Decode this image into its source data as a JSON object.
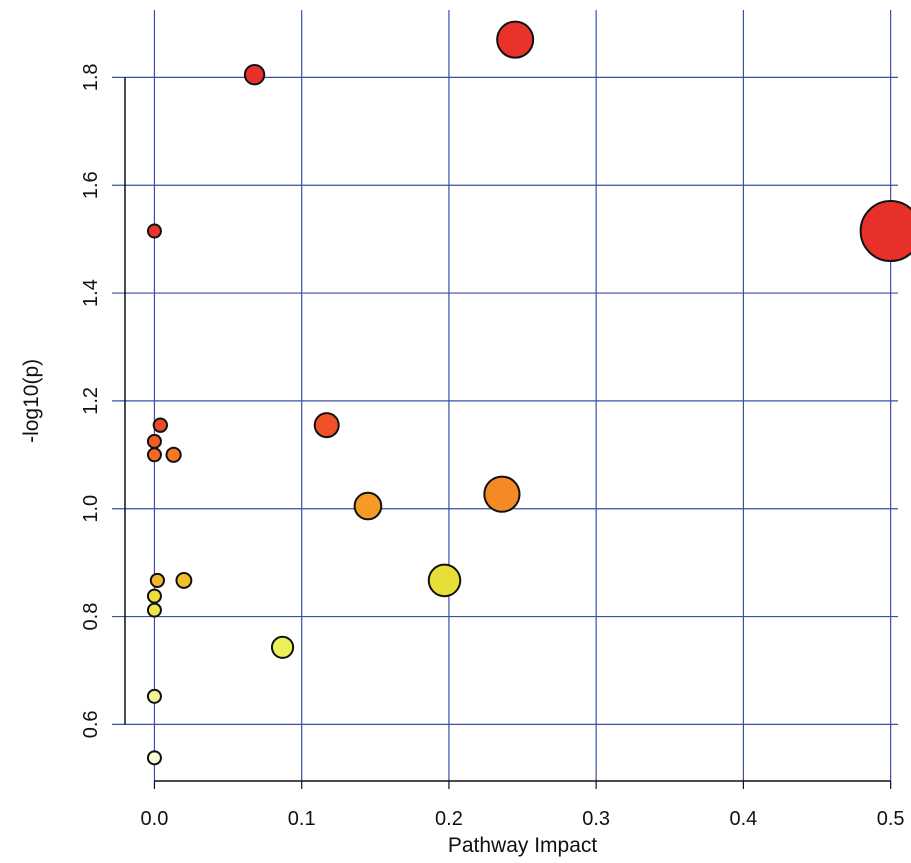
{
  "chart_data": {
    "type": "scatter",
    "title": "",
    "xlabel": "Pathway Impact",
    "ylabel": "-log10(p)",
    "xlim": [
      -0.02,
      0.505
    ],
    "ylim": [
      0.495,
      1.925
    ],
    "x_ticks": [
      0.0,
      0.1,
      0.2,
      0.3,
      0.4,
      0.5
    ],
    "x_tick_labels": [
      "0.0",
      "0.1",
      "0.2",
      "0.3",
      "0.4",
      "0.5"
    ],
    "y_ticks": [
      0.6,
      0.8,
      1.0,
      1.2,
      1.4,
      1.6,
      1.8
    ],
    "y_tick_labels": [
      "0.6",
      "0.8",
      "1.0",
      "1.2",
      "1.4",
      "1.6",
      "1.8"
    ],
    "grid": true,
    "grid_color": "#3a4fa8",
    "color_scale": "yellow (low -log10 p) to red (high -log10 p)",
    "size_encodes": "Pathway Impact",
    "points": [
      {
        "x": 0.245,
        "y": 1.87,
        "color": "#e8322a"
      },
      {
        "x": 0.068,
        "y": 1.805,
        "color": "#e8302a"
      },
      {
        "x": 0.0,
        "y": 1.515,
        "color": "#e8342a"
      },
      {
        "x": 0.5,
        "y": 1.515,
        "color": "#e8302a"
      },
      {
        "x": 0.004,
        "y": 1.155,
        "color": "#ee4a24"
      },
      {
        "x": 0.117,
        "y": 1.155,
        "color": "#ef5226"
      },
      {
        "x": 0.0,
        "y": 1.125,
        "color": "#f05e24"
      },
      {
        "x": 0.0,
        "y": 1.1,
        "color": "#f26a24"
      },
      {
        "x": 0.013,
        "y": 1.1,
        "color": "#f27a22"
      },
      {
        "x": 0.236,
        "y": 1.027,
        "color": "#f48a24"
      },
      {
        "x": 0.145,
        "y": 1.005,
        "color": "#f49a26"
      },
      {
        "x": 0.002,
        "y": 0.867,
        "color": "#f2b62a"
      },
      {
        "x": 0.02,
        "y": 0.867,
        "color": "#f0c22c"
      },
      {
        "x": 0.197,
        "y": 0.867,
        "color": "#e8de3a"
      },
      {
        "x": 0.0,
        "y": 0.838,
        "color": "#eede3c"
      },
      {
        "x": 0.0,
        "y": 0.812,
        "color": "#eee64a"
      },
      {
        "x": 0.087,
        "y": 0.743,
        "color": "#eef05a"
      },
      {
        "x": 0.0,
        "y": 0.652,
        "color": "#f2f296"
      },
      {
        "x": 0.0,
        "y": 0.538,
        "color": "#fafad8"
      }
    ]
  }
}
